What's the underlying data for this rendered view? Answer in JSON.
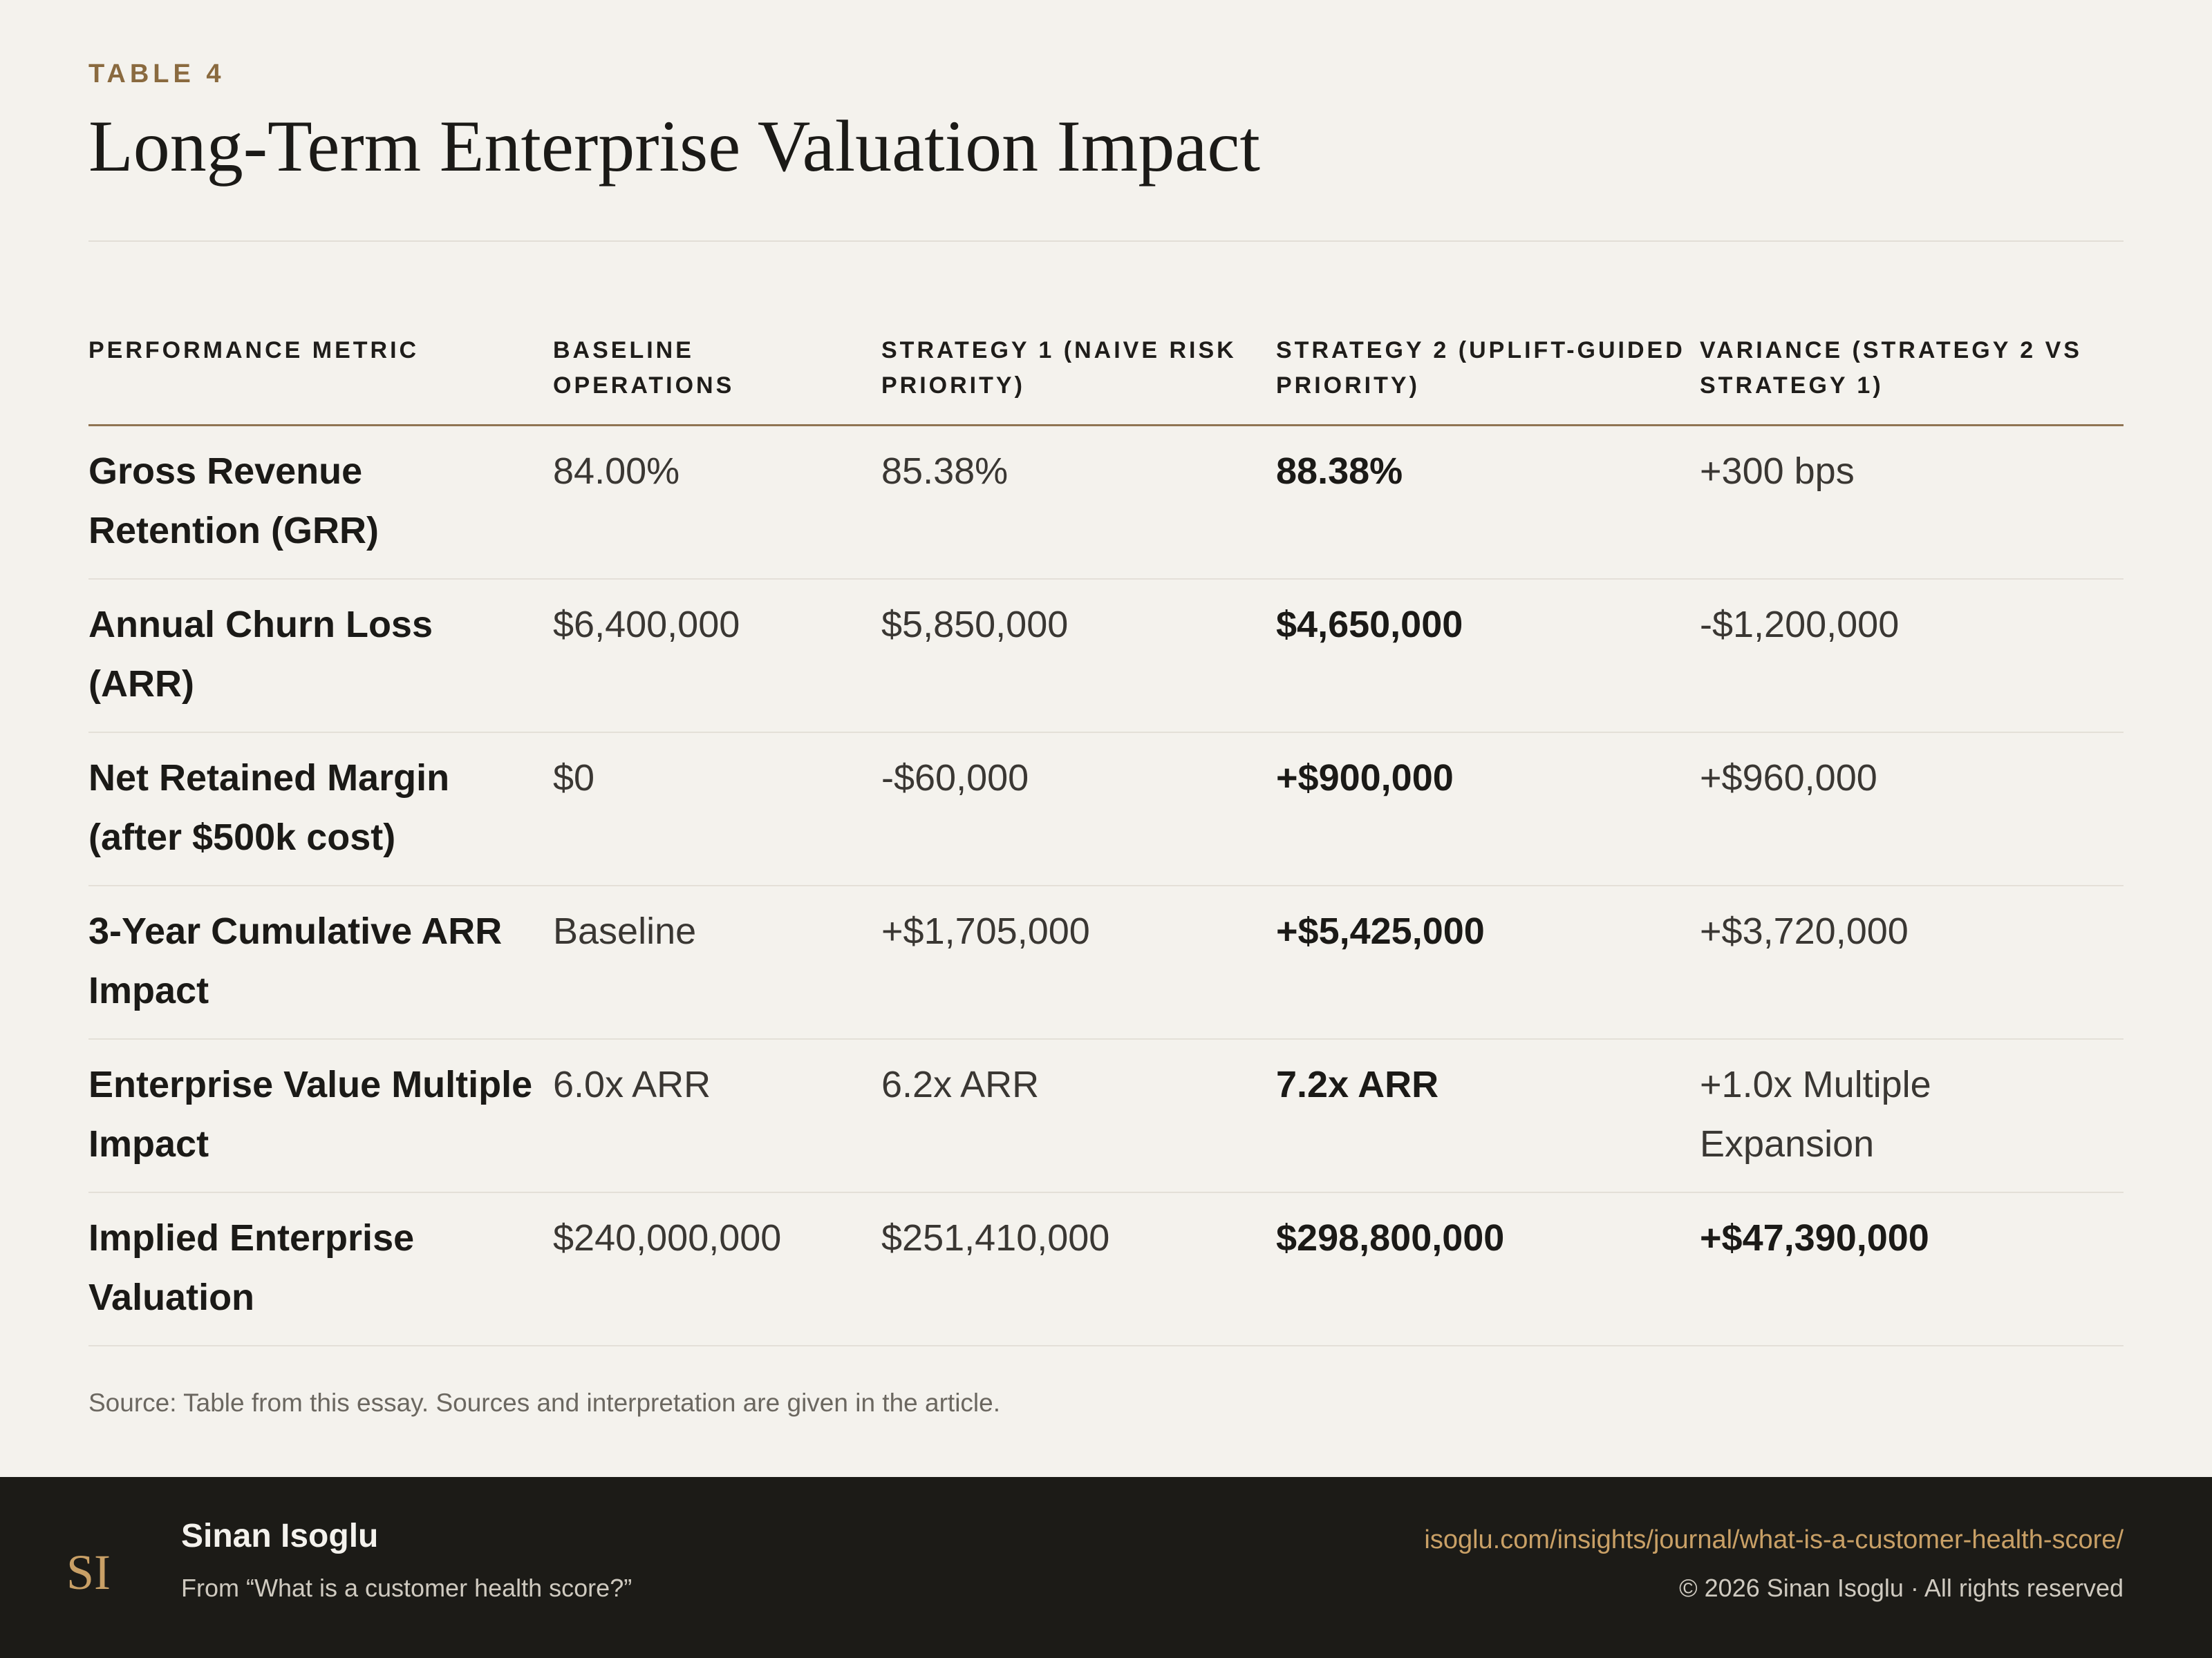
{
  "header": {
    "eyebrow": "TABLE 4",
    "title": "Long-Term Enterprise Valuation Impact"
  },
  "table": {
    "columns": [
      "PERFORMANCE METRIC",
      "BASELINE OPERATIONS",
      "STRATEGY 1 (NAIVE RISK PRIORITY)",
      "STRATEGY 2 (UPLIFT-GUIDED PRIORITY)",
      "VARIANCE (STRATEGY 2 VS STRATEGY 1)"
    ],
    "rows": [
      [
        "Gross Revenue Retention (GRR)",
        "84.00%",
        "85.38%",
        "88.38%",
        "+300 bps"
      ],
      [
        "Annual Churn Loss (ARR)",
        "$6,400,000",
        "$5,850,000",
        "$4,650,000",
        "-$1,200,000"
      ],
      [
        "Net Retained Margin (after $500k cost)",
        "$0",
        "-$60,000",
        "+$900,000",
        "+$960,000"
      ],
      [
        "3-Year Cumulative ARR Impact",
        "Baseline",
        "+$1,705,000",
        "+$5,425,000",
        "+$3,720,000"
      ],
      [
        "Enterprise Value Multiple Impact",
        "6.0x ARR",
        "6.2x ARR",
        "7.2x ARR",
        "+1.0x Multiple Expansion"
      ],
      [
        "Implied Enterprise Valuation",
        "$240,000,000",
        "$251,410,000",
        "$298,800,000",
        "+$47,390,000"
      ]
    ]
  },
  "source": "Source: Table from this essay. Sources and interpretation are given in the article.",
  "footer": {
    "logo_monogram": "SI",
    "author": "Sinan Isoglu",
    "from": "From “What is a customer health score?”",
    "url": "isoglu.com/insights/journal/what-is-a-customer-health-score/",
    "copyright": "© 2026 Sinan Isoglu · All rights reserved"
  },
  "colors": {
    "accent": "#8a6a3f",
    "footer_bg": "#1c1b17",
    "link": "#c9a066"
  }
}
